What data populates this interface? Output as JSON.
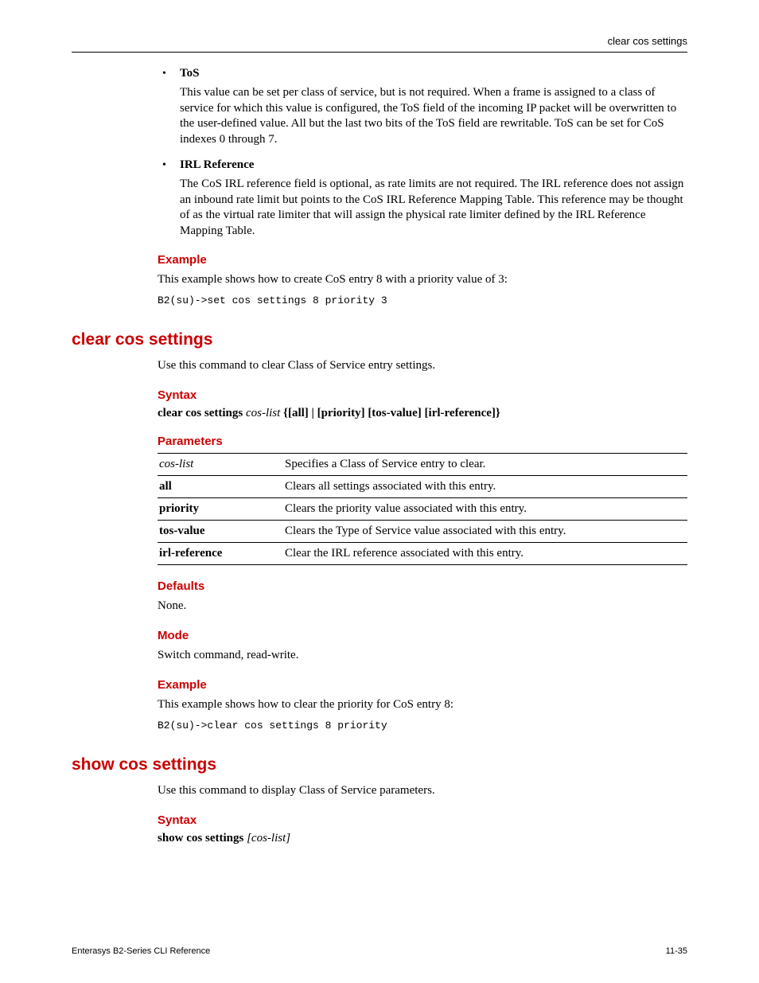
{
  "header": {
    "right_text": "clear cos settings"
  },
  "bullets": [
    {
      "label": "ToS",
      "body": "This value can be set per class of service, but is not required. When a frame is assigned to a class of service for which this value is configured, the ToS field of the incoming IP packet will be overwritten to the user-defined value. All but the last two bits of the ToS field are rewritable. ToS can be set for CoS indexes 0 through 7."
    },
    {
      "label": "IRL Reference",
      "body": "The CoS IRL reference field is optional, as rate limits are not required. The IRL reference does not assign an inbound rate limit but points to the CoS IRL Reference Mapping Table. This reference may be thought of as the virtual rate limiter that will assign the physical rate limiter defined by the IRL Reference Mapping Table."
    }
  ],
  "example1": {
    "heading": "Example",
    "text": "This example shows how to create CoS entry 8 with a priority value of 3:",
    "code": "B2(su)->set cos settings 8 priority 3"
  },
  "cmd_clear": {
    "title": "clear cos settings",
    "intro": "Use this command to clear Class of Service entry settings.",
    "syntax_heading": "Syntax",
    "syntax_cmd": "clear cos settings",
    "syntax_arg": "cos-list",
    "syntax_opts": "{[all] | [priority] [tos-value] [irl-reference]}",
    "params_heading": "Parameters",
    "params_rows": [
      {
        "name": "cos-list",
        "style": "italic",
        "desc": "Specifies a Class of Service entry to clear."
      },
      {
        "name": "all",
        "style": "bold",
        "desc": "Clears all settings associated with this entry."
      },
      {
        "name": "priority",
        "style": "bold",
        "desc": "Clears the priority value associated with this entry."
      },
      {
        "name": "tos-value",
        "style": "bold",
        "desc": "Clears the Type of Service value associated with this entry."
      },
      {
        "name": "irl-reference",
        "style": "bold",
        "desc": "Clear the IRL reference associated with this entry."
      }
    ],
    "defaults_heading": "Defaults",
    "defaults_text": "None.",
    "mode_heading": "Mode",
    "mode_text": "Switch command, read-write.",
    "example_heading": "Example",
    "example_text": "This example shows how to clear the priority for CoS entry 8:",
    "example_code": "B2(su)->clear cos settings 8 priority"
  },
  "cmd_show": {
    "title": "show cos settings",
    "intro": "Use this command to display Class of Service parameters.",
    "syntax_heading": "Syntax",
    "syntax_cmd": "show cos settings",
    "syntax_arg": "[cos-list]"
  },
  "footer": {
    "left": "Enterasys B2-Series CLI Reference",
    "right": "11-35"
  },
  "colors": {
    "heading_red": "#cc0000",
    "text": "#000000",
    "rule": "#000000",
    "background": "#ffffff"
  },
  "fonts": {
    "body": "Palatino",
    "headings": "Arial",
    "code": "Courier New"
  }
}
